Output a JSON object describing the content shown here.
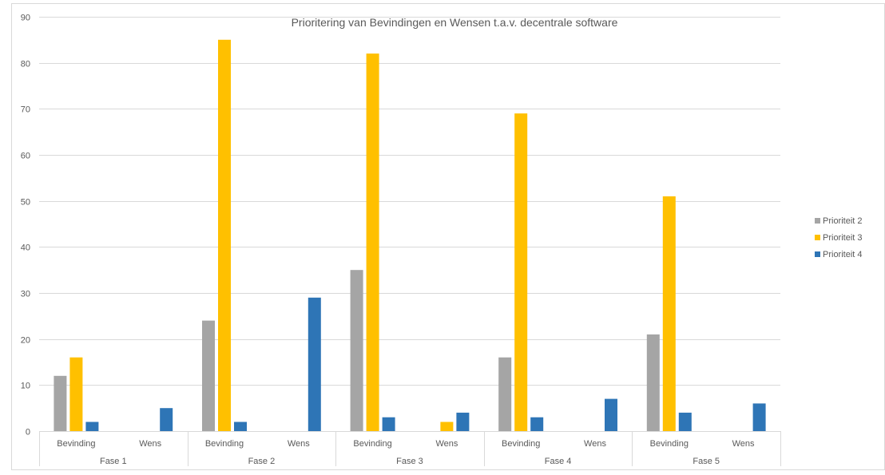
{
  "chart_data": {
    "type": "bar",
    "title": "Prioritering van Bevindingen en Wensen t.a.v. decentrale software",
    "xlabel": "",
    "ylabel": "",
    "ylim": [
      0,
      90
    ],
    "yticks": [
      0,
      10,
      20,
      30,
      40,
      50,
      60,
      70,
      80,
      90
    ],
    "grid": true,
    "legend_position": "right",
    "groups": [
      {
        "label": "Fase 1",
        "categories": [
          "Bevinding",
          "Wens"
        ]
      },
      {
        "label": "Fase 2",
        "categories": [
          "Bevinding",
          "Wens"
        ]
      },
      {
        "label": "Fase 3",
        "categories": [
          "Bevinding",
          "Wens"
        ]
      },
      {
        "label": "Fase 4",
        "categories": [
          "Bevinding",
          "Wens"
        ]
      },
      {
        "label": "Fase 5",
        "categories": [
          "Bevinding",
          "Wens"
        ]
      }
    ],
    "categories": [
      "Bevinding",
      "Wens",
      "Bevinding",
      "Wens",
      "Bevinding",
      "Wens",
      "Bevinding",
      "Wens",
      "Bevinding",
      "Wens"
    ],
    "series": [
      {
        "name": "Prioriteit 2",
        "color": "#a5a5a5",
        "values": [
          12,
          0,
          24,
          0,
          35,
          0,
          16,
          0,
          21,
          0
        ]
      },
      {
        "name": "Prioriteit 3",
        "color": "#ffc000",
        "values": [
          16,
          0,
          85,
          0,
          82,
          2,
          69,
          0,
          51,
          0
        ]
      },
      {
        "name": "Prioriteit 4",
        "color": "#2e75b6",
        "values": [
          2,
          5,
          2,
          29,
          3,
          4,
          3,
          7,
          4,
          6
        ]
      }
    ]
  }
}
